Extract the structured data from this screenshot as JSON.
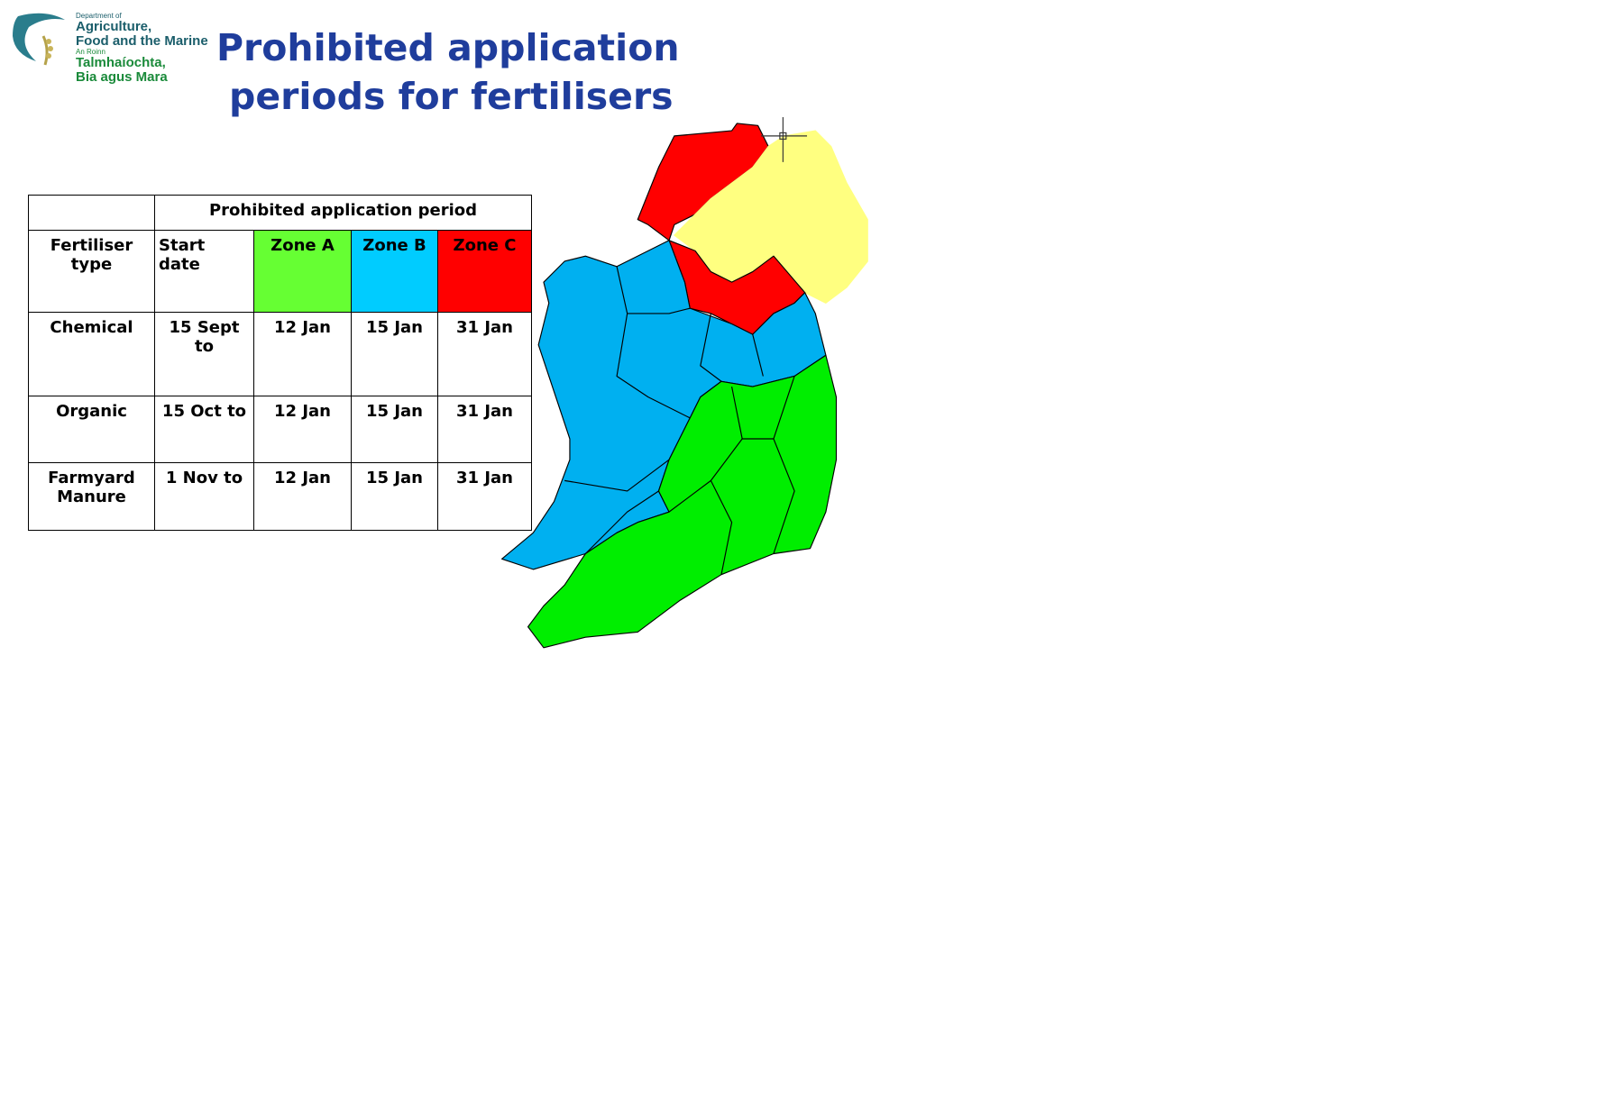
{
  "logo": {
    "line1": "Department of",
    "line2": "Agriculture,",
    "line3": "Food and the Marine",
    "line4": "An Roinn",
    "line5": "Talmhaíochta,",
    "line6": "Bia agus Mara"
  },
  "title": {
    "line1": "Prohibited application",
    "line2": "periods for fertilisers"
  },
  "table": {
    "group_header": "Prohibited application period",
    "headers": [
      "Fertiliser type",
      "Start date",
      "Zone A",
      "Zone B",
      "Zone C"
    ],
    "rows": [
      [
        "Chemical",
        "15 Sept to",
        "12 Jan",
        "15 Jan",
        "31 Jan"
      ],
      [
        "Organic",
        "15 Oct to",
        "12 Jan",
        "15 Jan",
        "31 Jan"
      ],
      [
        "Farmyard Manure",
        "1 Nov to",
        "12 Jan",
        "15 Jan",
        "31 Jan"
      ]
    ]
  }
}
